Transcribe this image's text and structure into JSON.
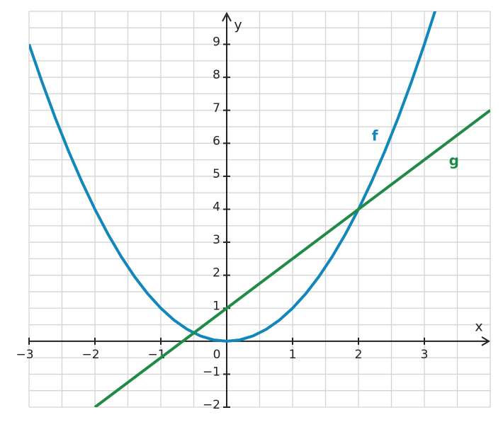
{
  "chart_data": {
    "type": "line",
    "xlabel": "x",
    "ylabel": "y",
    "xlim": [
      -3,
      4
    ],
    "ylim": [
      -2,
      10
    ],
    "xticks": [
      {
        "value": -3,
        "label": "−3"
      },
      {
        "value": -2,
        "label": "−2"
      },
      {
        "value": -1,
        "label": "−1"
      },
      0,
      1,
      2,
      3
    ],
    "yticks": [
      {
        "value": -2,
        "label": "−2"
      },
      {
        "value": -1,
        "label": "−1"
      },
      1,
      2,
      3,
      4,
      5,
      6,
      7,
      8,
      9
    ],
    "grid": true,
    "grid_spacing": 0.5,
    "series": [
      {
        "name": "f",
        "color": "#1287bb",
        "x": [
          -3,
          -2.8,
          -2.6,
          -2.4,
          -2.2,
          -2,
          -1.8,
          -1.6,
          -1.4,
          -1.2,
          -1,
          -0.8,
          -0.6,
          -0.4,
          -0.2,
          0,
          0.2,
          0.4,
          0.6,
          0.8,
          1,
          1.2,
          1.4,
          1.6,
          1.8,
          2,
          2.2,
          2.4,
          2.6,
          2.8,
          3,
          3.2
        ],
        "values": [
          9,
          7.84,
          6.76,
          5.76,
          4.84,
          4,
          3.24,
          2.56,
          1.96,
          1.44,
          1,
          0.64,
          0.36,
          0.16,
          0.04,
          0,
          0.04,
          0.16,
          0.36,
          0.64,
          1,
          1.44,
          1.96,
          2.56,
          3.24,
          4,
          4.84,
          5.76,
          6.76,
          7.84,
          9,
          10.24
        ]
      },
      {
        "name": "g",
        "color": "#1f8b47",
        "x": [
          -2,
          4
        ],
        "values": [
          -2,
          7
        ]
      }
    ]
  }
}
